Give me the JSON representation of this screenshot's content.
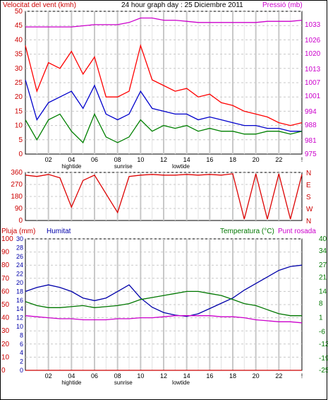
{
  "header": {
    "left_title": "Velocitat del vent (kmh)",
    "center_title": "24 hour graph day : 25 Diciembre 2011",
    "right_title": "Pressió (mb)"
  },
  "bottom_header": {
    "left1": "Pluja (mm)",
    "left2": "Humitat",
    "right1": "Temperatura (°C)",
    "right2": "Punt rosada"
  },
  "colors": {
    "wind_gust": "#ff0000",
    "wind_avg": "#0000cc",
    "wind_min": "#008000",
    "pressure": "#cc00cc",
    "direction": "#dd0000",
    "rain": "#cc0000",
    "humidity": "#0000aa",
    "temperature": "#007700",
    "dewpoint": "#cc00cc",
    "grid_vertical": "#c8c8c8",
    "grid_horizontal": "#c8c8c8"
  },
  "x_labels": [
    "02",
    "04",
    "06",
    "08",
    "10",
    "12",
    "14",
    "16",
    "18",
    "20",
    "22",
    "!"
  ],
  "x_events": [
    "hightide",
    "sunrise",
    "lowtide"
  ],
  "chart_data": [
    {
      "type": "line",
      "title": "24 hour graph day : 25 Diciembre 2011",
      "ylabel": "Velocitat del vent (kmh)",
      "y2label": "Pressió (mb)",
      "y_ticks": [
        0,
        5,
        10,
        15,
        20,
        25,
        30,
        35,
        40,
        45,
        50
      ],
      "y2_ticks": [
        975,
        981,
        988,
        994,
        1001,
        1007,
        1013,
        1020,
        1026,
        1033
      ],
      "ylim": [
        0,
        50
      ],
      "y2lim": [
        975,
        1039
      ],
      "x_hours": [
        0,
        1,
        2,
        3,
        4,
        5,
        6,
        7,
        8,
        9,
        10,
        11,
        12,
        13,
        14,
        15,
        16,
        17,
        18,
        19,
        20,
        21,
        22,
        23,
        24
      ],
      "series": [
        {
          "values": [
            38,
            22,
            32,
            30,
            36,
            28,
            34,
            20,
            20,
            22,
            38,
            26,
            24,
            22,
            23,
            20,
            21,
            18,
            17,
            15,
            14,
            13,
            11,
            10,
            11
          ]
        },
        {
          "values": [
            26,
            12,
            18,
            20,
            22,
            16,
            24,
            14,
            12,
            14,
            22,
            16,
            15,
            14,
            14,
            12,
            13,
            12,
            11,
            10,
            10,
            9,
            9,
            8,
            8
          ]
        },
        {
          "values": [
            12,
            5,
            12,
            14,
            8,
            4,
            14,
            6,
            4,
            6,
            12,
            8,
            10,
            9,
            10,
            8,
            9,
            8,
            8,
            7,
            7,
            8,
            8,
            7,
            8
          ]
        },
        {
          "axis": "y2",
          "values": [
            1032,
            1032,
            1032,
            1032,
            1032,
            1032.5,
            1033,
            1033,
            1033,
            1034,
            1036,
            1036,
            1035,
            1035,
            1034.5,
            1034,
            1034,
            1034,
            1034,
            1034,
            1034,
            1034.5,
            1034.5,
            1034.5,
            1035
          ]
        }
      ]
    },
    {
      "type": "line",
      "y_ticks": [
        0,
        90,
        180,
        270,
        360
      ],
      "y2_ticks": [
        "N",
        "W",
        "S",
        "E",
        "N"
      ],
      "ylim": [
        0,
        360
      ],
      "x_hours": [
        0,
        1,
        2,
        3,
        4,
        5,
        6,
        7,
        8,
        9,
        10,
        11,
        12,
        13,
        14,
        15,
        16,
        17,
        18,
        19,
        20,
        21,
        22,
        23,
        24
      ],
      "series": [
        {
          "values": [
            340,
            330,
            345,
            320,
            100,
            300,
            340,
            200,
            60,
            330,
            340,
            345,
            340,
            340,
            345,
            340,
            345,
            340,
            350,
            10,
            350,
            10,
            350,
            10,
            345
          ]
        }
      ]
    },
    {
      "type": "line",
      "ylabel": "Pluja (mm)",
      "y2label": "Temperatura (°C)",
      "y_ticks": [
        0,
        10,
        20,
        30,
        40,
        50,
        60,
        70,
        80,
        90,
        100
      ],
      "y_ticks_inner": [
        0,
        2,
        4,
        6,
        8,
        10,
        12,
        14,
        16,
        18,
        20,
        22,
        24,
        26,
        28,
        30
      ],
      "y2_ticks": [
        -25,
        -19,
        -12,
        -6,
        1,
        8,
        14,
        21,
        27,
        34,
        40
      ],
      "ylim": [
        0,
        100
      ],
      "y2lim": [
        -25,
        40
      ],
      "x_hours": [
        0,
        1,
        2,
        3,
        4,
        5,
        6,
        7,
        8,
        9,
        10,
        11,
        12,
        13,
        14,
        15,
        16,
        17,
        18,
        19,
        20,
        21,
        22,
        23,
        24
      ],
      "series": [
        {
          "values": [
            0,
            0,
            0,
            0,
            0,
            0,
            0,
            0,
            0,
            0,
            0,
            0,
            0,
            0,
            0,
            0,
            0,
            0,
            0,
            0,
            0,
            0,
            0,
            0,
            0
          ]
        },
        {
          "values": [
            60,
            63,
            65,
            63,
            60,
            55,
            53,
            55,
            60,
            65,
            55,
            48,
            44,
            42,
            41,
            43,
            47,
            51,
            55,
            61,
            66,
            71,
            76,
            79,
            80
          ]
        },
        {
          "axis": "y2",
          "values": [
            9,
            7,
            6,
            6,
            6.5,
            7,
            6,
            6.5,
            7,
            8,
            10,
            11,
            12,
            13,
            14,
            14,
            13,
            12,
            10,
            8,
            7,
            5,
            3,
            2,
            2
          ]
        },
        {
          "axis": "y2",
          "values": [
            2,
            1.5,
            1,
            0.5,
            0.5,
            0,
            0,
            0,
            0.5,
            0.5,
            1,
            1,
            1.5,
            2,
            2,
            2,
            2,
            1.5,
            1.5,
            1,
            0,
            -0.5,
            -1,
            -1,
            -1.5
          ]
        }
      ]
    }
  ]
}
